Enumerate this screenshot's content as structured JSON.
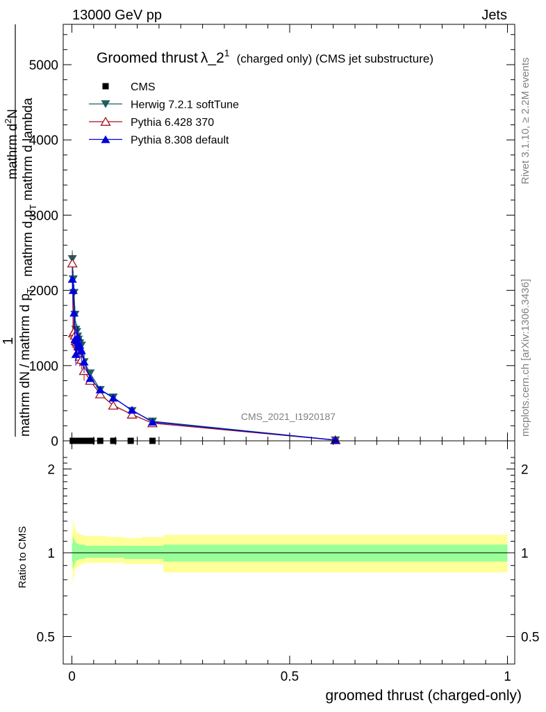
{
  "header": {
    "energy_label": "13000 GeV pp",
    "process_label": "Jets"
  },
  "side_labels": {
    "rivet": "Rivet 3.1.10, ≥ 2.2M events",
    "mcplots": "mcplots.cern.ch [arXiv:1306.3436]"
  },
  "chart_data": [
    {
      "type": "line",
      "panel": "main",
      "title_main": "Groomed thrust",
      "title_lambda": "λ_2",
      "title_sup": "1",
      "title_rest": "(charged only) (CMS jet substructure)",
      "watermark": "CMS_2021_I1920187",
      "ylabel": "1 / mathrm dN / mathrm d p_T mathrm d^2N / mathrm d p_T mathrm d lambda",
      "ylabel_parts": {
        "one": "1",
        "den": "mathrm dN / mathrm d p",
        "num_parts": [
          "mathrm d",
          "N"
        ],
        "den_parts": [
          "mathrm d p",
          "T",
          " mathrm d lambda"
        ],
        "num_sup": "2",
        "sub_T": "T"
      },
      "xlim": [
        0,
        1
      ],
      "ylim": [
        0,
        5500
      ],
      "yticks": [
        0,
        1000,
        2000,
        3000,
        4000,
        5000
      ],
      "ytick_labels": [
        "0",
        "1000",
        "2000",
        "3000",
        "4000",
        "5000"
      ],
      "legend_position": "top-left",
      "series": [
        {
          "name": "CMS",
          "style": "square",
          "color": "#000000",
          "x": [
            0.002,
            0.006,
            0.01,
            0.014,
            0.018,
            0.025,
            0.035,
            0.045,
            0.065,
            0.095,
            0.135,
            0.185,
            0.605
          ],
          "y": [
            0,
            0,
            0,
            0,
            0,
            0,
            0,
            0,
            0,
            0,
            0,
            0,
            0
          ]
        },
        {
          "name": "Herwig 7.2.1 softTune",
          "style": "triangle-down",
          "color": "#1d5f5f",
          "x": [
            0.001,
            0.003,
            0.005,
            0.007,
            0.009,
            0.011,
            0.013,
            0.015,
            0.018,
            0.022,
            0.028,
            0.042,
            0.065,
            0.095,
            0.138,
            0.185,
            0.605
          ],
          "y": [
            2420,
            2150,
            1970,
            1680,
            1480,
            1450,
            1390,
            1350,
            1300,
            1270,
            1050,
            900,
            680,
            580,
            400,
            260,
            10
          ]
        },
        {
          "name": "Pythia 6.428 370",
          "style": "triangle-open",
          "color": "#a0111c",
          "x": [
            0.001,
            0.003,
            0.005,
            0.007,
            0.009,
            0.011,
            0.013,
            0.015,
            0.018,
            0.022,
            0.028,
            0.042,
            0.065,
            0.095,
            0.138,
            0.185,
            0.605
          ],
          "y": [
            2360,
            1430,
            1450,
            1400,
            1330,
            1310,
            1290,
            1260,
            1120,
            1080,
            930,
            800,
            620,
            470,
            350,
            235,
            10
          ]
        },
        {
          "name": "Pythia 8.308 default",
          "style": "triangle-up",
          "color": "#0000dd",
          "x": [
            0.001,
            0.003,
            0.005,
            0.007,
            0.009,
            0.011,
            0.013,
            0.015,
            0.018,
            0.022,
            0.028,
            0.042,
            0.065,
            0.095,
            0.138,
            0.185,
            0.605
          ],
          "y": [
            2150,
            2000,
            1700,
            1350,
            1150,
            1330,
            1380,
            1250,
            1270,
            1200,
            1050,
            830,
            680,
            570,
            410,
            250,
            10
          ]
        }
      ]
    },
    {
      "type": "area",
      "panel": "ratio",
      "ylabel": "Ratio to CMS",
      "xlabel": "groomed thrust (charged-only)",
      "xlim": [
        0,
        1
      ],
      "ylim": [
        0.4,
        2.3
      ],
      "xticks": [
        0,
        0.5,
        1
      ],
      "xtick_labels": [
        "0",
        "0.5",
        "1"
      ],
      "yticks": [
        0.5,
        1,
        2
      ],
      "ytick_labels": [
        "0.5",
        "1",
        "2"
      ],
      "reference_line": 1,
      "bands": {
        "edges": [
          0,
          0.002,
          0.004,
          0.006,
          0.008,
          0.01,
          0.012,
          0.016,
          0.02,
          0.03,
          0.05,
          0.08,
          0.12,
          0.16,
          0.21,
          1.0
        ],
        "yellow_low": [
          0.87,
          0.78,
          0.82,
          0.86,
          0.88,
          0.88,
          0.89,
          0.9,
          0.91,
          0.92,
          0.92,
          0.92,
          0.91,
          0.91,
          0.85
        ],
        "yellow_high": [
          1.18,
          1.3,
          1.26,
          1.23,
          1.21,
          1.19,
          1.18,
          1.17,
          1.16,
          1.15,
          1.15,
          1.14,
          1.13,
          1.14,
          1.16
        ],
        "green_low": [
          0.93,
          0.88,
          0.9,
          0.92,
          0.93,
          0.94,
          0.94,
          0.95,
          0.95,
          0.96,
          0.96,
          0.96,
          0.95,
          0.95,
          0.93
        ],
        "green_high": [
          1.08,
          1.14,
          1.12,
          1.1,
          1.09,
          1.08,
          1.08,
          1.07,
          1.07,
          1.06,
          1.06,
          1.06,
          1.06,
          1.06,
          1.07
        ]
      },
      "band_colors": {
        "yellow": "#ffff99",
        "green": "#99ff99"
      }
    }
  ]
}
